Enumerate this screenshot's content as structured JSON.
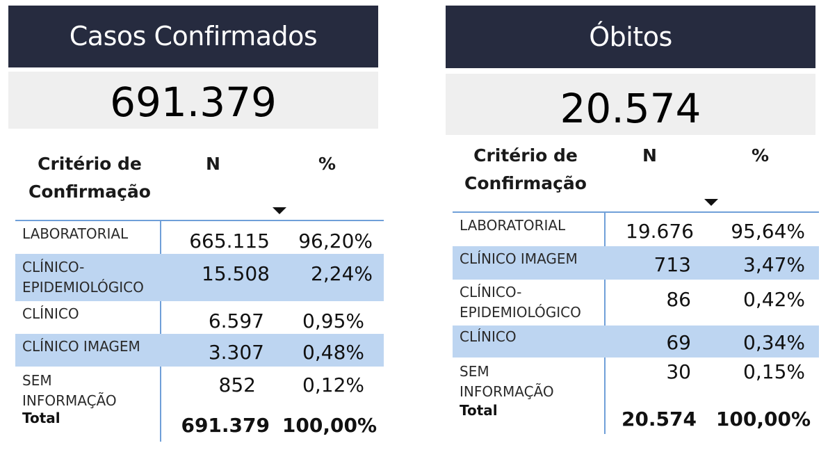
{
  "casos": {
    "title": "Casos Confirmados",
    "total_value": "691.379",
    "headers": {
      "criterio": "Critério de Confirmação",
      "n": "N",
      "pct": "%"
    },
    "rows": [
      {
        "label": "LABORATORIAL",
        "n": "665.115",
        "pct": "96,20%"
      },
      {
        "label": "CLÍNICO-EPIDEMIOLÓGICO",
        "n": "15.508",
        "pct": "2,24%"
      },
      {
        "label": "CLÍNICO",
        "n": "6.597",
        "pct": "0,95%"
      },
      {
        "label": "CLÍNICO IMAGEM",
        "n": "3.307",
        "pct": "0,48%"
      },
      {
        "label": "SEM INFORMAÇÃO",
        "n": "852",
        "pct": "0,12%"
      }
    ],
    "total": {
      "label": "Total",
      "n": "691.379",
      "pct": "100,00%"
    }
  },
  "obitos": {
    "title": "Óbitos",
    "total_value": "20.574",
    "headers": {
      "criterio": "Critério de Confirmação",
      "n": "N",
      "pct": "%"
    },
    "rows": [
      {
        "label": "LABORATORIAL",
        "n": "19.676",
        "pct": "95,64%"
      },
      {
        "label": "CLÍNICO IMAGEM",
        "n": "713",
        "pct": "3,47%"
      },
      {
        "label": "CLÍNICO-EPIDEMIOLÓGICO",
        "n": "86",
        "pct": "0,42%"
      },
      {
        "label": "CLÍNICO",
        "n": "69",
        "pct": "0,34%"
      },
      {
        "label": "SEM INFORMAÇÃO",
        "n": "30",
        "pct": "0,15%"
      }
    ],
    "total": {
      "label": "Total",
      "n": "20.574",
      "pct": "100,00%"
    }
  },
  "colors": {
    "title_bg": "#262b3f",
    "card_bg": "#efefef",
    "row_highlight": "#bdd5f1",
    "grid_line": "#6f9fd8"
  }
}
